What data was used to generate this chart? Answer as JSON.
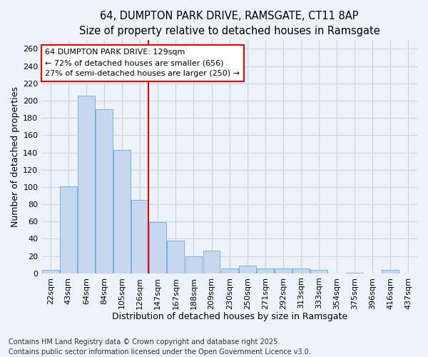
{
  "title_line1": "64, DUMPTON PARK DRIVE, RAMSGATE, CT11 8AP",
  "title_line2": "Size of property relative to detached houses in Ramsgate",
  "xlabel": "Distribution of detached houses by size in Ramsgate",
  "ylabel": "Number of detached properties",
  "categories": [
    "22sqm",
    "43sqm",
    "64sqm",
    "84sqm",
    "105sqm",
    "126sqm",
    "147sqm",
    "167sqm",
    "188sqm",
    "209sqm",
    "230sqm",
    "250sqm",
    "271sqm",
    "292sqm",
    "313sqm",
    "333sqm",
    "354sqm",
    "375sqm",
    "396sqm",
    "416sqm",
    "437sqm"
  ],
  "values": [
    4,
    101,
    206,
    190,
    143,
    85,
    59,
    38,
    20,
    26,
    6,
    9,
    6,
    6,
    6,
    4,
    0,
    1,
    0,
    4,
    0
  ],
  "bar_color": "#c5d8f0",
  "bar_edge_color": "#7ab0d8",
  "grid_color": "#c8d4e8",
  "background_color": "#eef2f9",
  "vline_x_index": 5,
  "vline_color": "red",
  "annotation_text": "64 DUMPTON PARK DRIVE: 129sqm\n← 72% of detached houses are smaller (656)\n27% of semi-detached houses are larger (250) →",
  "annotation_box_color": "white",
  "annotation_box_edge": "red",
  "ylim": [
    0,
    270
  ],
  "yticks": [
    0,
    20,
    40,
    60,
    80,
    100,
    120,
    140,
    160,
    180,
    200,
    220,
    240,
    260
  ],
  "footnote": "Contains HM Land Registry data © Crown copyright and database right 2025.\nContains public sector information licensed under the Open Government Licence v3.0.",
  "title_fontsize": 10.5,
  "subtitle_fontsize": 9.5,
  "label_fontsize": 9,
  "tick_fontsize": 8,
  "annotation_fontsize": 8,
  "footnote_fontsize": 7
}
